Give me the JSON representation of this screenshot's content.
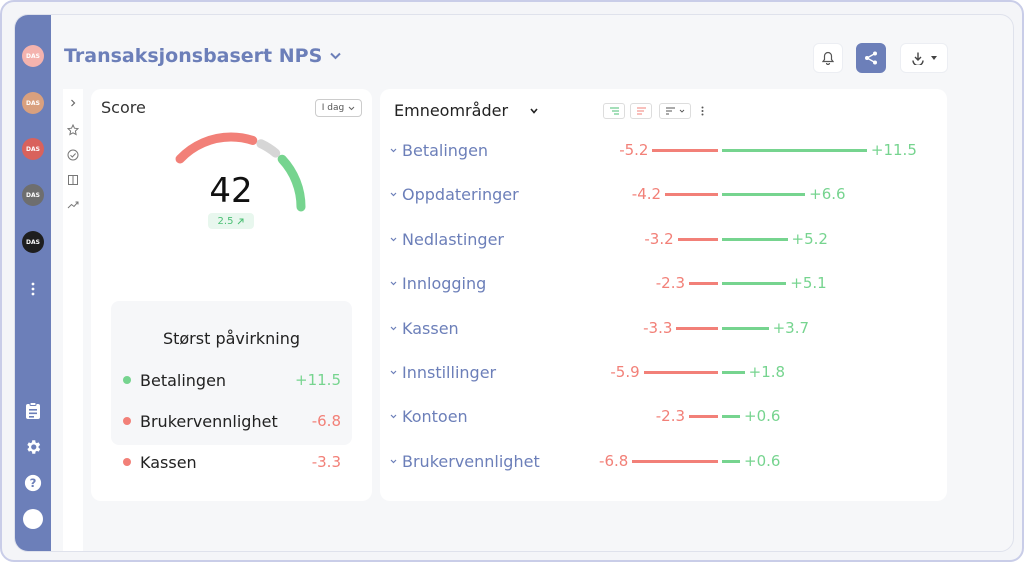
{
  "header": {
    "title": "Transaksjonsbasert NPS"
  },
  "sidebar": {
    "avatars": [
      {
        "label": "DAS",
        "color": "#f4b3ae"
      },
      {
        "label": "DAS",
        "color": "#d9a07e"
      },
      {
        "label": "DAS",
        "color": "#d9625c"
      },
      {
        "label": "DAS",
        "color": "#6e6e6e"
      },
      {
        "label": "DAS",
        "color": "#1e1e1e"
      }
    ]
  },
  "score": {
    "title": "Score",
    "period": "I dag",
    "value": "42",
    "delta": "2.5",
    "gauge": {
      "negative_fraction": 0.18,
      "positive_fraction": 0.72
    }
  },
  "impact": {
    "title": "Størst påvirkning",
    "items": [
      {
        "name": "Betalingen",
        "value": "+11.5",
        "color": "#76d48f"
      },
      {
        "name": "Brukervennlighet",
        "value": "-6.8",
        "color": "#f28078"
      },
      {
        "name": "Kassen",
        "value": "-3.3",
        "color": "#f28078"
      }
    ]
  },
  "topics": {
    "title": "Emneområder",
    "items": [
      {
        "name": "Betalingen",
        "neg": -5.2,
        "pos": 11.5,
        "neg_label": "-5.2",
        "pos_label": "+11.5"
      },
      {
        "name": "Oppdateringer",
        "neg": -4.2,
        "pos": 6.6,
        "neg_label": "-4.2",
        "pos_label": "+6.6"
      },
      {
        "name": "Nedlastinger",
        "neg": -3.2,
        "pos": 5.2,
        "neg_label": "-3.2",
        "pos_label": "+5.2"
      },
      {
        "name": "Innlogging",
        "neg": -2.3,
        "pos": 5.1,
        "neg_label": "-2.3",
        "pos_label": "+5.1"
      },
      {
        "name": "Kassen",
        "neg": -3.3,
        "pos": 3.7,
        "neg_label": "-3.3",
        "pos_label": "+3.7"
      },
      {
        "name": "Innstillinger",
        "neg": -5.9,
        "pos": 1.8,
        "neg_label": "-5.9",
        "pos_label": "+1.8"
      },
      {
        "name": "Kontoen",
        "neg": -2.3,
        "pos": 0.6,
        "neg_label": "-2.3",
        "pos_label": "+0.6"
      },
      {
        "name": "Brukervennlighet",
        "neg": -6.8,
        "pos": 0.6,
        "neg_label": "-6.8",
        "pos_label": "+0.6"
      }
    ]
  }
}
